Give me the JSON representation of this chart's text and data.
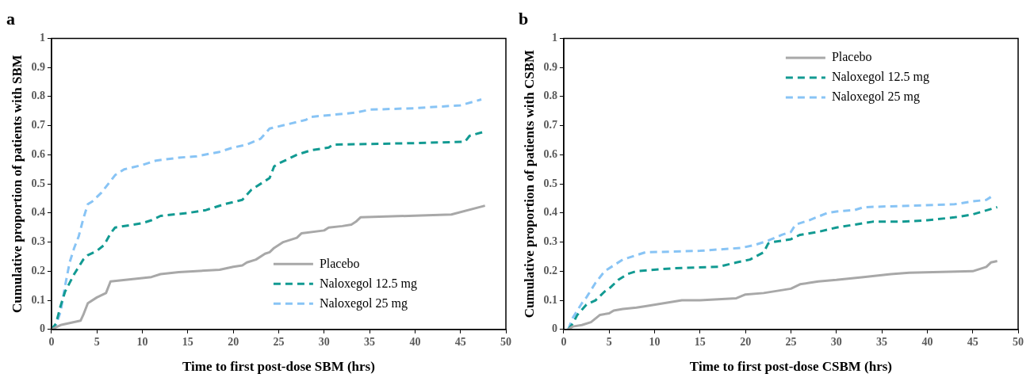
{
  "chart_data": [
    {
      "type": "line",
      "title": "a",
      "xlabel": "Time to first post-dose SBM (hrs)",
      "ylabel": "Cumulative proportion of patients with SBM",
      "xlim": [
        0,
        50
      ],
      "xticks": [
        0,
        5,
        10,
        15,
        20,
        25,
        30,
        35,
        40,
        45,
        50
      ],
      "ylim": [
        0,
        1
      ],
      "yticks": [
        0,
        0.1,
        0.2,
        0.3,
        0.4,
        0.5,
        0.6,
        0.7,
        0.8,
        0.9,
        1
      ],
      "grid": false,
      "legend": "bottom right",
      "marker": "none",
      "series": [
        {
          "name": "Placebo",
          "color": "#a8a8a8",
          "line_style": "solid",
          "x": [
            0,
            1,
            3.2,
            3.5,
            4,
            5,
            6,
            6.5,
            11,
            12,
            14,
            18.5,
            20,
            21,
            21.5,
            22.5,
            23.5,
            24,
            24.5,
            25.5,
            27,
            27.5,
            30,
            30.5,
            32,
            33,
            33.5,
            34,
            44,
            47.7
          ],
          "values": [
            0,
            0.015,
            0.03,
            0.05,
            0.09,
            0.11,
            0.125,
            0.165,
            0.18,
            0.19,
            0.197,
            0.205,
            0.215,
            0.22,
            0.23,
            0.24,
            0.26,
            0.265,
            0.28,
            0.3,
            0.315,
            0.33,
            0.34,
            0.35,
            0.355,
            0.36,
            0.37,
            0.385,
            0.395,
            0.425
          ]
        },
        {
          "name": "Naloxegol 12.5 mg",
          "color": "#129a92",
          "line_style": "dashed",
          "x": [
            0,
            0.5,
            1,
            1.5,
            2.5,
            3.5,
            4,
            5,
            5.8,
            6.5,
            7,
            10,
            11,
            12,
            15,
            17,
            19,
            21,
            22,
            24,
            24.5,
            25,
            27,
            28.5,
            30.5,
            31,
            40,
            45.5,
            46,
            47.7
          ],
          "values": [
            0,
            0.02,
            0.08,
            0.13,
            0.19,
            0.24,
            0.255,
            0.27,
            0.29,
            0.33,
            0.35,
            0.365,
            0.375,
            0.39,
            0.4,
            0.41,
            0.43,
            0.445,
            0.48,
            0.52,
            0.56,
            0.57,
            0.6,
            0.615,
            0.625,
            0.635,
            0.64,
            0.645,
            0.665,
            0.68
          ]
        },
        {
          "name": "Naloxegol 25 mg",
          "color": "#88c4f5",
          "line_style": "dashed",
          "x": [
            0,
            0.5,
            1,
            1.5,
            2,
            2.5,
            3,
            3.5,
            4,
            4.5,
            5.5,
            6.5,
            7,
            8,
            10,
            11.5,
            14,
            16,
            18.5,
            20,
            21.5,
            23,
            24,
            26,
            28,
            28.5,
            33.5,
            35,
            40,
            45,
            47.3
          ],
          "values": [
            0,
            0.015,
            0.06,
            0.15,
            0.23,
            0.28,
            0.32,
            0.38,
            0.43,
            0.44,
            0.47,
            0.51,
            0.53,
            0.55,
            0.565,
            0.58,
            0.59,
            0.595,
            0.61,
            0.625,
            0.635,
            0.655,
            0.69,
            0.705,
            0.72,
            0.73,
            0.745,
            0.755,
            0.76,
            0.77,
            0.79
          ]
        }
      ]
    },
    {
      "type": "line",
      "title": "b",
      "xlabel": "Time to first post-dose CSBM (hrs)",
      "ylabel": "Cumulative proportion of patients with CSBM",
      "xlim": [
        0,
        50
      ],
      "xticks": [
        0,
        5,
        10,
        15,
        20,
        25,
        30,
        35,
        40,
        45,
        50
      ],
      "ylim": [
        0,
        1
      ],
      "yticks": [
        0,
        0.1,
        0.2,
        0.3,
        0.4,
        0.5,
        0.6,
        0.7,
        0.8,
        0.9,
        1
      ],
      "grid": false,
      "legend": "top right",
      "marker": "none",
      "series": [
        {
          "name": "Placebo",
          "color": "#a8a8a8",
          "line_style": "solid",
          "x": [
            0.5,
            1,
            2,
            3,
            4,
            5,
            5.5,
            6.5,
            8,
            9,
            11,
            13,
            15,
            19,
            20,
            22,
            25,
            26,
            27,
            28,
            30,
            33,
            36,
            38,
            45,
            46.5,
            47,
            47.7
          ],
          "values": [
            0,
            0.01,
            0.015,
            0.025,
            0.05,
            0.055,
            0.065,
            0.07,
            0.075,
            0.08,
            0.09,
            0.1,
            0.1,
            0.107,
            0.12,
            0.125,
            0.14,
            0.155,
            0.16,
            0.165,
            0.17,
            0.18,
            0.19,
            0.195,
            0.2,
            0.215,
            0.23,
            0.235
          ]
        },
        {
          "name": "Naloxegol 12.5 mg",
          "color": "#129a92",
          "line_style": "dashed",
          "x": [
            0.5,
            1,
            1.5,
            2.5,
            3.5,
            4.5,
            5,
            6,
            7,
            8,
            12,
            17,
            19,
            20.5,
            22,
            22.5,
            23,
            25,
            26,
            28,
            30,
            32,
            34,
            37,
            40,
            43,
            45,
            47.7
          ],
          "values": [
            0,
            0.02,
            0.05,
            0.085,
            0.1,
            0.13,
            0.14,
            0.17,
            0.19,
            0.2,
            0.21,
            0.215,
            0.23,
            0.24,
            0.265,
            0.295,
            0.3,
            0.31,
            0.325,
            0.335,
            0.35,
            0.36,
            0.37,
            0.37,
            0.375,
            0.385,
            0.395,
            0.42
          ]
        },
        {
          "name": "Naloxegol 25 mg",
          "color": "#88c4f5",
          "line_style": "dashed",
          "x": [
            0.5,
            1,
            2,
            2.5,
            3.5,
            4.5,
            5.5,
            6.5,
            9,
            15,
            19.5,
            21,
            22.5,
            24,
            25,
            25.5,
            27,
            29,
            30,
            32,
            33,
            38,
            43,
            45,
            46.5,
            47
          ],
          "values": [
            0,
            0.04,
            0.09,
            0.11,
            0.16,
            0.2,
            0.22,
            0.24,
            0.265,
            0.27,
            0.28,
            0.29,
            0.305,
            0.325,
            0.335,
            0.36,
            0.375,
            0.4,
            0.405,
            0.41,
            0.42,
            0.425,
            0.43,
            0.44,
            0.445,
            0.455
          ]
        }
      ]
    }
  ]
}
